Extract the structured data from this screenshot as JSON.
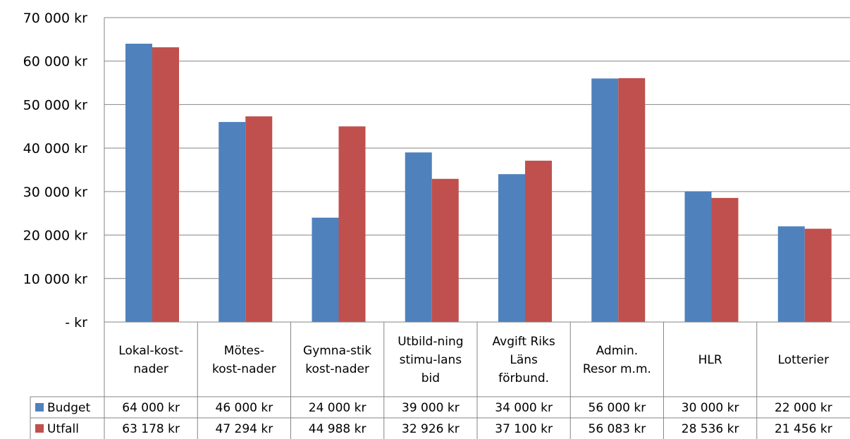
{
  "chart_data": {
    "type": "bar",
    "categories": [
      [
        "Lokal-kost-",
        "nader"
      ],
      [
        "Mötes-",
        "kost-nader"
      ],
      [
        "Gymna-stik",
        "kost-nader"
      ],
      [
        "Utbild-ning",
        "stimu-lans",
        "bid"
      ],
      [
        "Avgift Riks",
        "Läns",
        "förbund."
      ],
      [
        "Admin.",
        "Resor m.m."
      ],
      [
        "HLR"
      ],
      [
        "Lotterier"
      ]
    ],
    "series": [
      {
        "name": "Budget",
        "color": "#4F81BD",
        "values": [
          64000,
          46000,
          24000,
          39000,
          34000,
          56000,
          30000,
          22000
        ],
        "labels": [
          "64 000 kr",
          "46 000 kr",
          "24 000 kr",
          "39 000 kr",
          "34 000 kr",
          "56 000 kr",
          "30 000 kr",
          "22 000 kr"
        ]
      },
      {
        "name": "Utfall",
        "color": "#C0504D",
        "values": [
          63178,
          47294,
          44988,
          32926,
          37100,
          56083,
          28536,
          21456
        ],
        "labels": [
          "63 178 kr",
          "47 294 kr",
          "44 988 kr",
          "32 926 kr",
          "37 100 kr",
          "56 083 kr",
          "28 536 kr",
          "21 456 kr"
        ]
      }
    ],
    "ylim": [
      0,
      70000
    ],
    "yticks": [
      0,
      10000,
      20000,
      30000,
      40000,
      50000,
      60000,
      70000
    ],
    "ytick_labels": [
      "-   kr",
      "10 000 kr",
      "20 000 kr",
      "30 000 kr",
      "40 000 kr",
      "50 000 kr",
      "60 000 kr",
      "70 000 kr"
    ],
    "grid": true,
    "legend": "data-table"
  }
}
